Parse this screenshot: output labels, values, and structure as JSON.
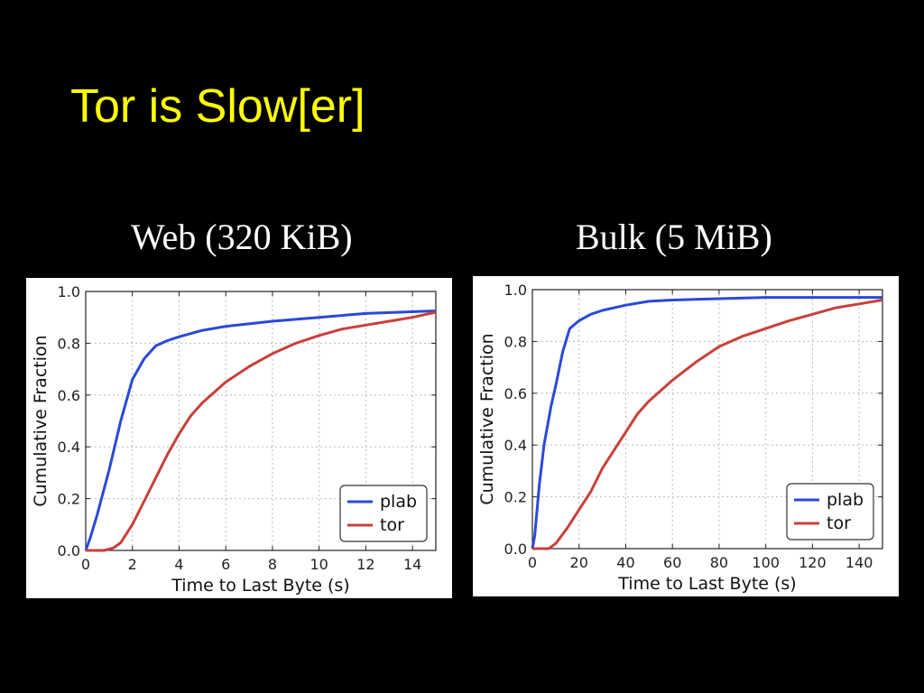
{
  "slide": {
    "title": "Tor is Slow[er]"
  },
  "colors": {
    "background": "#000000",
    "title": "#ffff00",
    "plab": "#2a49d8",
    "tor": "#c8403a"
  },
  "chart_data": [
    {
      "type": "line",
      "title": "Web (320 KiB)",
      "xlabel": "Time to Last Byte (s)",
      "ylabel": "Cumulative Fraction",
      "xlim": [
        0,
        15
      ],
      "ylim": [
        0,
        1.0
      ],
      "xticks": [
        0,
        2,
        4,
        6,
        8,
        10,
        12,
        14
      ],
      "xtick_labels": [
        "0",
        "2",
        "4",
        "6",
        "8",
        "10",
        "12",
        "14"
      ],
      "yticks": [
        0,
        0.2,
        0.4,
        0.6,
        0.8,
        1.0
      ],
      "ytick_labels": [
        "0.0",
        "0.2",
        "0.4",
        "0.6",
        "0.8",
        "1.0"
      ],
      "grid": true,
      "legend_position": "bottom-right",
      "series": [
        {
          "name": "plab",
          "color": "#2a49d8",
          "x": [
            0,
            0.2,
            0.5,
            1.0,
            1.5,
            2.0,
            2.5,
            3.0,
            3.5,
            4.0,
            5.0,
            6.0,
            8.0,
            10.0,
            12.0,
            15.0
          ],
          "y": [
            0,
            0.05,
            0.14,
            0.31,
            0.5,
            0.66,
            0.74,
            0.79,
            0.81,
            0.825,
            0.85,
            0.865,
            0.885,
            0.9,
            0.915,
            0.925
          ]
        },
        {
          "name": "tor",
          "color": "#c8403a",
          "x": [
            0,
            0.8,
            1.2,
            1.5,
            2.0,
            2.5,
            3.0,
            3.5,
            4.0,
            4.5,
            5.0,
            6.0,
            7.0,
            8.0,
            9.0,
            10.0,
            11.0,
            12.0,
            13.0,
            14.0,
            15.0
          ],
          "y": [
            0,
            0,
            0.01,
            0.03,
            0.1,
            0.19,
            0.28,
            0.37,
            0.45,
            0.52,
            0.57,
            0.65,
            0.71,
            0.76,
            0.8,
            0.83,
            0.855,
            0.87,
            0.885,
            0.9,
            0.92
          ]
        }
      ]
    },
    {
      "type": "line",
      "title": "Bulk (5 MiB)",
      "xlabel": "Time to Last Byte (s)",
      "ylabel": "Cumulative Fraction",
      "xlim": [
        0,
        150
      ],
      "ylim": [
        0,
        1.0
      ],
      "xticks": [
        0,
        20,
        40,
        60,
        80,
        100,
        120,
        140
      ],
      "xtick_labels": [
        "0",
        "20",
        "40",
        "60",
        "80",
        "100",
        "120",
        "140"
      ],
      "yticks": [
        0,
        0.2,
        0.4,
        0.6,
        0.8,
        1.0
      ],
      "ytick_labels": [
        "0.0",
        "0.2",
        "0.4",
        "0.6",
        "0.8",
        "1.0"
      ],
      "grid": true,
      "legend_position": "bottom-right",
      "series": [
        {
          "name": "plab",
          "color": "#2a49d8",
          "x": [
            0,
            1,
            3,
            5,
            8,
            10,
            13,
            16,
            20,
            25,
            30,
            40,
            50,
            60,
            80,
            100,
            150
          ],
          "y": [
            0,
            0.05,
            0.25,
            0.4,
            0.55,
            0.63,
            0.76,
            0.85,
            0.88,
            0.905,
            0.92,
            0.94,
            0.955,
            0.96,
            0.965,
            0.97,
            0.97
          ]
        },
        {
          "name": "tor",
          "color": "#c8403a",
          "x": [
            0,
            7,
            10,
            15,
            20,
            25,
            30,
            35,
            40,
            45,
            50,
            60,
            70,
            80,
            90,
            100,
            110,
            120,
            130,
            140,
            150
          ],
          "y": [
            0,
            0,
            0.02,
            0.08,
            0.15,
            0.22,
            0.31,
            0.38,
            0.45,
            0.52,
            0.57,
            0.65,
            0.72,
            0.78,
            0.82,
            0.85,
            0.88,
            0.905,
            0.93,
            0.945,
            0.96
          ]
        }
      ]
    }
  ]
}
